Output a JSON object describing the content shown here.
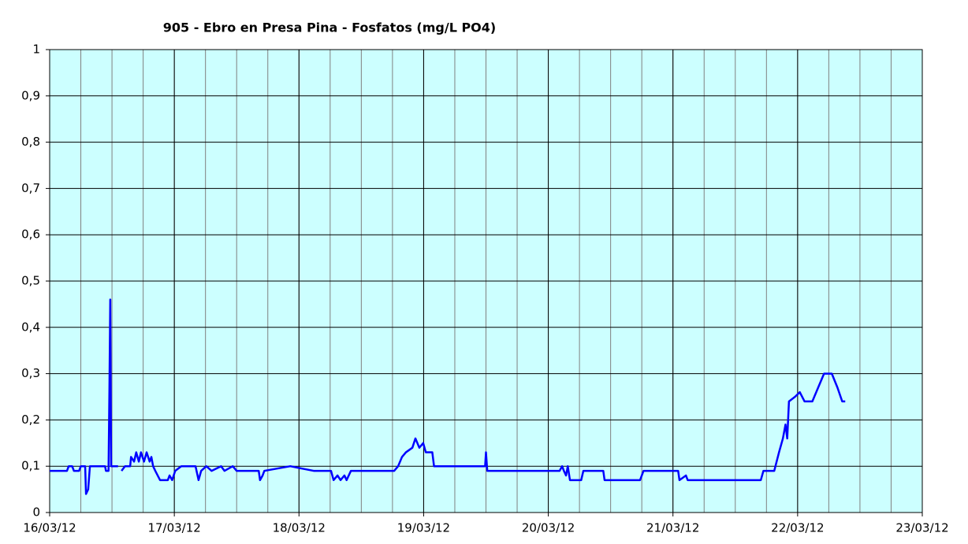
{
  "chart_data": {
    "type": "line",
    "title": "905 - Ebro en Presa Pina - Fosfatos (mg/L PO4)",
    "x": [
      "2012-03-16T00:00",
      "2012-03-16T03:20",
      "2012-03-16T03:40",
      "2012-03-16T04:20",
      "2012-03-16T04:40",
      "2012-03-16T05:40",
      "2012-03-16T06:00",
      "2012-03-16T06:50",
      "2012-03-16T07:00",
      "2012-03-16T07:25",
      "2012-03-16T07:45",
      "2012-03-16T10:40",
      "2012-03-16T10:50",
      "2012-03-16T11:20",
      "2012-03-16T11:30",
      "2012-03-16T11:40",
      "2012-03-16T11:50",
      "2012-03-16T13:10",
      "2012-03-16T13:30",
      "2012-03-16T13:50",
      "2012-03-16T14:30",
      "2012-03-16T15:30",
      "2012-03-16T15:40",
      "2012-03-16T16:15",
      "2012-03-16T16:40",
      "2012-03-16T17:10",
      "2012-03-16T17:35",
      "2012-03-16T18:10",
      "2012-03-16T18:40",
      "2012-03-16T19:15",
      "2012-03-16T19:35",
      "2012-03-16T19:55",
      "2012-03-16T20:20",
      "2012-03-16T21:15",
      "2012-03-16T22:45",
      "2012-03-16T23:05",
      "2012-03-16T23:35",
      "2012-03-17T00:10",
      "2012-03-17T01:20",
      "2012-03-17T04:05",
      "2012-03-17T04:40",
      "2012-03-17T05:10",
      "2012-03-17T06:10",
      "2012-03-17T07:10",
      "2012-03-17T09:00",
      "2012-03-17T09:40",
      "2012-03-17T11:15",
      "2012-03-17T12:00",
      "2012-03-17T16:15",
      "2012-03-17T16:30",
      "2012-03-17T17:00",
      "2012-03-17T17:20",
      "2012-03-17T22:20",
      "2012-03-18T02:50",
      "2012-03-18T06:10",
      "2012-03-18T06:40",
      "2012-03-18T07:25",
      "2012-03-18T08:00",
      "2012-03-18T08:45",
      "2012-03-18T09:10",
      "2012-03-18T10:00",
      "2012-03-18T18:20",
      "2012-03-18T19:05",
      "2012-03-18T19:50",
      "2012-03-18T20:35",
      "2012-03-18T21:50",
      "2012-03-18T22:25",
      "2012-03-18T23:10",
      "2012-03-18T23:55",
      "2012-03-19T00:25",
      "2012-03-19T01:40",
      "2012-03-19T02:00",
      "2012-03-19T11:50",
      "2012-03-19T12:00",
      "2012-03-19T12:15",
      "2012-03-20T02:10",
      "2012-03-20T02:40",
      "2012-03-20T03:00",
      "2012-03-20T03:25",
      "2012-03-20T03:45",
      "2012-03-20T04:10",
      "2012-03-20T06:20",
      "2012-03-20T06:45",
      "2012-03-20T10:35",
      "2012-03-20T10:50",
      "2012-03-20T17:40",
      "2012-03-20T18:20",
      "2012-03-21T01:00",
      "2012-03-21T01:15",
      "2012-03-21T02:30",
      "2012-03-21T02:50",
      "2012-03-21T16:55",
      "2012-03-21T17:25",
      "2012-03-21T19:30",
      "2012-03-21T20:25",
      "2012-03-21T21:10",
      "2012-03-21T21:40",
      "2012-03-21T22:00",
      "2012-03-21T22:20",
      "2012-03-21T23:30",
      "2012-03-22T00:25",
      "2012-03-22T01:20",
      "2012-03-22T02:50",
      "2012-03-22T03:35",
      "2012-03-22T04:20",
      "2012-03-22T05:05",
      "2012-03-22T06:35",
      "2012-03-22T07:40",
      "2012-03-22T08:35",
      "2012-03-22T09:10"
    ],
    "series": [
      {
        "color": "#0000ff",
        "values": [
          0.09,
          0.09,
          0.1,
          0.1,
          0.09,
          0.09,
          0.1,
          0.1,
          0.04,
          0.05,
          0.1,
          0.1,
          0.09,
          0.09,
          0.26,
          0.46,
          0.1,
          0.1,
          null,
          0.09,
          0.1,
          0.1,
          0.12,
          0.11,
          0.13,
          0.11,
          0.13,
          0.11,
          0.13,
          0.11,
          0.12,
          0.1,
          0.09,
          0.07,
          0.07,
          0.08,
          0.07,
          0.09,
          0.1,
          0.1,
          0.07,
          0.09,
          0.1,
          0.09,
          0.1,
          0.09,
          0.1,
          0.09,
          0.09,
          0.07,
          0.08,
          0.09,
          0.1,
          0.09,
          0.09,
          0.07,
          0.08,
          0.07,
          0.08,
          0.07,
          0.09,
          0.09,
          0.1,
          0.12,
          0.13,
          0.14,
          0.16,
          0.14,
          0.15,
          0.13,
          0.13,
          0.1,
          0.1,
          0.13,
          0.09,
          0.09,
          0.1,
          0.09,
          0.08,
          0.1,
          0.07,
          0.07,
          0.09,
          0.09,
          0.07,
          0.07,
          0.09,
          0.09,
          0.07,
          0.08,
          0.07,
          0.07,
          0.09,
          0.09,
          0.13,
          0.16,
          0.19,
          0.16,
          0.24,
          0.25,
          0.26,
          0.24,
          0.24,
          0.26,
          0.28,
          0.3,
          0.3,
          0.27,
          0.24,
          0.24
        ]
      }
    ],
    "xlim": [
      "2012-03-16",
      "2012-03-23"
    ],
    "xticks": [
      {
        "value": "2012-03-16",
        "label": "16/03/12"
      },
      {
        "value": "2012-03-17",
        "label": "17/03/12"
      },
      {
        "value": "2012-03-18",
        "label": "18/03/12"
      },
      {
        "value": "2012-03-19",
        "label": "19/03/12"
      },
      {
        "value": "2012-03-20",
        "label": "20/03/12"
      },
      {
        "value": "2012-03-21",
        "label": "21/03/12"
      },
      {
        "value": "2012-03-22",
        "label": "22/03/12"
      },
      {
        "value": "2012-03-23",
        "label": "23/03/12"
      }
    ],
    "x_minor_grid_hours": 6,
    "ylim": [
      0,
      1
    ],
    "yticks": [
      0,
      {
        "value": 0.1,
        "label": "0,1"
      },
      {
        "value": 0.2,
        "label": "0,2"
      },
      {
        "value": 0.3,
        "label": "0,3"
      },
      {
        "value": 0.4,
        "label": "0,4"
      },
      {
        "value": 0.5,
        "label": "0,5"
      },
      {
        "value": 0.6,
        "label": "0,6"
      },
      {
        "value": 0.7,
        "label": "0,7"
      },
      {
        "value": 0.8,
        "label": "0,8"
      },
      {
        "value": 0.9,
        "label": "0,9"
      },
      1
    ],
    "grid": true,
    "plot_background": "#ccffff"
  }
}
